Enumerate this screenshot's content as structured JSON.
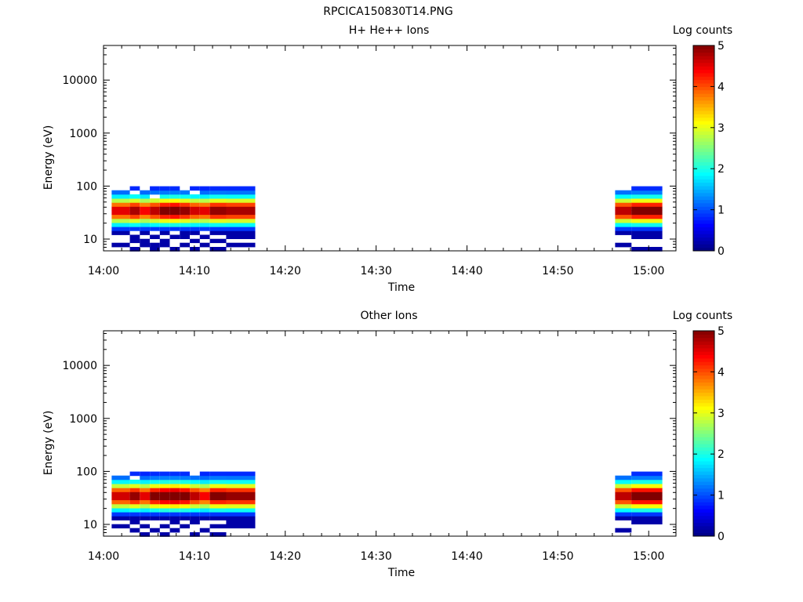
{
  "title": "RPCICA150830T14.PNG",
  "chart_data": [
    {
      "type": "heatmap",
      "title": "H+ He++ Ions",
      "xlabel": "Time",
      "ylabel": "Energy (eV)",
      "x_ticks": [
        "14:00",
        "14:10",
        "14:20",
        "14:30",
        "14:40",
        "14:50",
        "15:00"
      ],
      "y_ticks": [
        "10",
        "100",
        "1000",
        "10000"
      ],
      "y_scale": "log",
      "ylim": [
        6,
        45000
      ],
      "xlim": [
        "14:00",
        "15:03"
      ],
      "colorbar": {
        "label": "Log counts",
        "ticks": [
          "0",
          "1",
          "2",
          "3",
          "4",
          "5"
        ],
        "range": [
          0,
          5
        ],
        "colormap": "jet"
      },
      "energy_bins_eV": [
        6.5,
        7.8,
        9.3,
        11.0,
        13.2,
        15.7,
        18.7,
        22.3,
        26.6,
        31.7,
        37.8,
        45.0,
        53.7,
        64.0,
        76.3,
        91.0
      ],
      "time_intervals": [
        {
          "start": "14:00.9",
          "end": "14:02.9",
          "peak": 4.0,
          "gaps": [
            0,
            2,
            3,
            15
          ]
        },
        {
          "start": "14:02.9",
          "end": "14:04.0",
          "peak": 4.3,
          "gaps": [
            1,
            4,
            14
          ]
        },
        {
          "start": "14:04.0",
          "end": "14:05.1",
          "peak": 3.9,
          "gaps": [
            0,
            3,
            15
          ]
        },
        {
          "start": "14:05.1",
          "end": "14:06.2",
          "peak": 4.2,
          "gaps": [
            2,
            4,
            13
          ]
        },
        {
          "start": "14:06.2",
          "end": "14:07.3",
          "peak": 4.5,
          "gaps": [
            0,
            3
          ]
        },
        {
          "start": "14:07.3",
          "end": "14:08.4",
          "peak": 4.6,
          "gaps": [
            1,
            2,
            4
          ]
        },
        {
          "start": "14:08.4",
          "end": "14:09.5",
          "peak": 4.4,
          "gaps": [
            0,
            2,
            15
          ]
        },
        {
          "start": "14:09.5",
          "end": "14:10.6",
          "peak": 4.1,
          "gaps": [
            1,
            3,
            14
          ]
        },
        {
          "start": "14:10.6",
          "end": "14:11.7",
          "peak": 4.0,
          "gaps": [
            0,
            2,
            4
          ]
        },
        {
          "start": "14:11.7",
          "end": "14:13.5",
          "peak": 4.4,
          "gaps": [
            1,
            3
          ]
        },
        {
          "start": "14:13.5",
          "end": "14:16.7",
          "peak": 4.3,
          "gaps": [
            0,
            2
          ]
        },
        {
          "start": "14:56.3",
          "end": "14:58.1",
          "peak": 4.2,
          "gaps": [
            0,
            2,
            3,
            15
          ]
        },
        {
          "start": "14:58.1",
          "end": "15:01.5",
          "peak": 4.5,
          "gaps": [
            1,
            2
          ]
        }
      ]
    },
    {
      "type": "heatmap",
      "title": "Other Ions",
      "xlabel": "Time",
      "ylabel": "Energy (eV)",
      "x_ticks": [
        "14:00",
        "14:10",
        "14:20",
        "14:30",
        "14:40",
        "14:50",
        "15:00"
      ],
      "y_ticks": [
        "10",
        "100",
        "1000",
        "10000"
      ],
      "y_scale": "log",
      "ylim": [
        6,
        45000
      ],
      "xlim": [
        "14:00",
        "15:03"
      ],
      "colorbar": {
        "label": "Log counts",
        "ticks": [
          "0",
          "1",
          "2",
          "3",
          "4",
          "5"
        ],
        "range": [
          0,
          5
        ],
        "colormap": "jet"
      },
      "energy_bins_eV": [
        6.5,
        7.8,
        9.3,
        11.0,
        13.2,
        15.7,
        18.7,
        22.3,
        26.6,
        31.7,
        37.8,
        45.0,
        53.7,
        64.0,
        76.3,
        91.0
      ],
      "time_intervals": [
        {
          "start": "14:00.9",
          "end": "14:02.9",
          "peak": 4.1,
          "gaps": [
            0,
            1,
            3,
            15
          ]
        },
        {
          "start": "14:02.9",
          "end": "14:04.0",
          "peak": 4.4,
          "gaps": [
            0,
            2,
            14
          ]
        },
        {
          "start": "14:04.0",
          "end": "14:05.1",
          "peak": 4.0,
          "gaps": [
            1,
            3
          ]
        },
        {
          "start": "14:05.1",
          "end": "14:06.2",
          "peak": 4.5,
          "gaps": [
            0,
            2,
            3
          ]
        },
        {
          "start": "14:06.2",
          "end": "14:07.3",
          "peak": 4.7,
          "gaps": [
            1,
            3
          ]
        },
        {
          "start": "14:07.3",
          "end": "14:08.4",
          "peak": 4.8,
          "gaps": [
            0,
            2
          ]
        },
        {
          "start": "14:08.4",
          "end": "14:09.5",
          "peak": 4.6,
          "gaps": [
            0,
            1,
            3
          ]
        },
        {
          "start": "14:09.5",
          "end": "14:10.6",
          "peak": 4.2,
          "gaps": [
            1,
            2,
            15
          ]
        },
        {
          "start": "14:10.6",
          "end": "14:11.7",
          "peak": 3.9,
          "gaps": [
            0,
            2,
            3
          ]
        },
        {
          "start": "14:11.7",
          "end": "14:13.5",
          "peak": 4.5,
          "gaps": [
            1,
            3
          ]
        },
        {
          "start": "14:13.5",
          "end": "14:16.7",
          "peak": 4.4,
          "gaps": [
            0,
            1
          ]
        },
        {
          "start": "14:56.3",
          "end": "14:58.1",
          "peak": 4.2,
          "gaps": [
            0,
            2,
            3,
            15
          ]
        },
        {
          "start": "14:58.1",
          "end": "15:01.5",
          "peak": 4.6,
          "gaps": [
            0,
            1,
            2
          ]
        }
      ]
    }
  ]
}
